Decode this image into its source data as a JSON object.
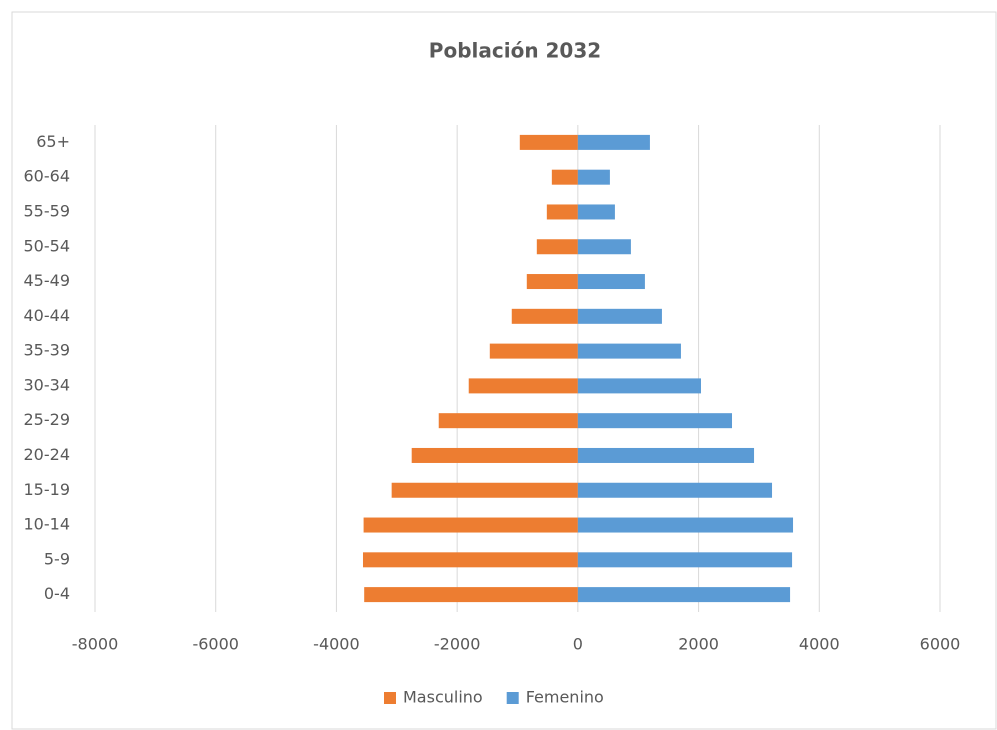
{
  "chart_data": {
    "type": "hbar",
    "title": "Población 2032",
    "categories": [
      "0-4",
      "5-9",
      "10-14",
      "15-19",
      "20-24",
      "25-29",
      "30-34",
      "35-39",
      "40-44",
      "45-49",
      "50-54",
      "55-59",
      "60-64",
      "65+"
    ],
    "series": [
      {
        "name": "Masculino",
        "color": "#ed7d31",
        "values": [
          -3540,
          -3560,
          -3550,
          -3085,
          -2753,
          -2305,
          -1808,
          -1459,
          -1095,
          -846,
          -680,
          -514,
          -431,
          -962
        ]
      },
      {
        "name": "Femenino",
        "color": "#5b9bd5",
        "values": [
          3516,
          3549,
          3565,
          3217,
          2919,
          2554,
          2040,
          1708,
          1393,
          1111,
          879,
          614,
          531,
          1194
        ]
      }
    ],
    "xlim": [
      -8000,
      6000
    ],
    "xticks": [
      -8000,
      -6000,
      -4000,
      -2000,
      0,
      2000,
      4000,
      6000
    ],
    "grid": true,
    "legend": "bottom"
  }
}
